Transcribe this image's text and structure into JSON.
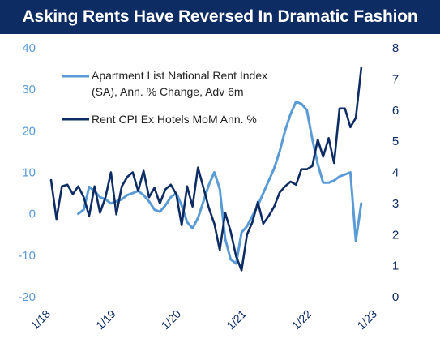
{
  "chart_data": {
    "type": "line",
    "title": "Asking Rents Have  Reversed In Dramatic Fashion",
    "grid": false,
    "legend_position": "top-left",
    "left_axis": {
      "ticks": [
        "40",
        "30",
        "20",
        "10",
        "0",
        "-10",
        "-20"
      ],
      "ylim": [
        -20,
        40
      ]
    },
    "right_axis": {
      "ticks": [
        "8",
        "7",
        "6",
        "5",
        "4",
        "3",
        "2",
        "1",
        "0"
      ],
      "ylim": [
        0,
        8
      ]
    },
    "x_ticks": [
      "1/18",
      "1/19",
      "1/20",
      "1/21",
      "1/22",
      "1/23"
    ],
    "x_range": [
      "2018-01",
      "2023-01"
    ],
    "series": [
      {
        "name": "Apartment List National Rent Index (SA), Ann. % Change, Adv 6m",
        "axis": "left",
        "color": "#5b9bd5",
        "points": [
          [
            "2018-06",
            0
          ],
          [
            "2018-07",
            1
          ],
          [
            "2018-08",
            6.5
          ],
          [
            "2018-09",
            5.5
          ],
          [
            "2018-10",
            4
          ],
          [
            "2018-11",
            3.5
          ],
          [
            "2018-12",
            2.5
          ],
          [
            "2019-01",
            3
          ],
          [
            "2019-02",
            3.5
          ],
          [
            "2019-03",
            4.5
          ],
          [
            "2019-04",
            5
          ],
          [
            "2019-05",
            5.5
          ],
          [
            "2019-06",
            4.5
          ],
          [
            "2019-07",
            3
          ],
          [
            "2019-08",
            1
          ],
          [
            "2019-09",
            0.5
          ],
          [
            "2019-10",
            2
          ],
          [
            "2019-11",
            4
          ],
          [
            "2019-12",
            5
          ],
          [
            "2020-01",
            2
          ],
          [
            "2020-02",
            -2
          ],
          [
            "2020-03",
            -3.5
          ],
          [
            "2020-04",
            -1
          ],
          [
            "2020-05",
            3
          ],
          [
            "2020-06",
            7
          ],
          [
            "2020-07",
            10
          ],
          [
            "2020-08",
            6
          ],
          [
            "2020-09",
            -6
          ],
          [
            "2020-10",
            -11
          ],
          [
            "2020-11",
            -12
          ],
          [
            "2020-12",
            -4.5
          ],
          [
            "2021-01",
            -3
          ],
          [
            "2021-02",
            -0.5
          ],
          [
            "2021-03",
            2
          ],
          [
            "2021-04",
            5
          ],
          [
            "2021-05",
            8
          ],
          [
            "2021-06",
            11
          ],
          [
            "2021-07",
            15
          ],
          [
            "2021-08",
            20
          ],
          [
            "2021-09",
            24
          ],
          [
            "2021-10",
            27
          ],
          [
            "2021-11",
            26.5
          ],
          [
            "2021-12",
            25
          ],
          [
            "2022-01",
            18
          ],
          [
            "2022-02",
            12
          ],
          [
            "2022-03",
            7.5
          ],
          [
            "2022-04",
            7.5
          ],
          [
            "2022-05",
            8
          ],
          [
            "2022-06",
            9
          ],
          [
            "2022-07",
            9.5
          ],
          [
            "2022-08",
            10
          ],
          [
            "2022-09",
            -6.5
          ],
          [
            "2022-10",
            2.5
          ]
        ]
      },
      {
        "name": "Rent CPI Ex Hotels MoM Ann. %",
        "axis": "right",
        "color": "#0d2c63",
        "points": [
          [
            "2018-01",
            3.75
          ],
          [
            "2018-02",
            2.5
          ],
          [
            "2018-03",
            3.55
          ],
          [
            "2018-04",
            3.6
          ],
          [
            "2018-05",
            3.3
          ],
          [
            "2018-06",
            3.55
          ],
          [
            "2018-07",
            3.2
          ],
          [
            "2018-08",
            2.6
          ],
          [
            "2018-09",
            3.55
          ],
          [
            "2018-10",
            2.7
          ],
          [
            "2018-11",
            3.2
          ],
          [
            "2018-12",
            4.0
          ],
          [
            "2019-01",
            2.65
          ],
          [
            "2019-02",
            3.55
          ],
          [
            "2019-03",
            3.85
          ],
          [
            "2019-04",
            4.0
          ],
          [
            "2019-05",
            3.4
          ],
          [
            "2019-06",
            4.05
          ],
          [
            "2019-07",
            3.2
          ],
          [
            "2019-08",
            3.5
          ],
          [
            "2019-09",
            3.0
          ],
          [
            "2019-10",
            3.45
          ],
          [
            "2019-11",
            3.6
          ],
          [
            "2019-12",
            3.3
          ],
          [
            "2020-01",
            2.3
          ],
          [
            "2020-02",
            3.55
          ],
          [
            "2020-03",
            2.9
          ],
          [
            "2020-04",
            4.15
          ],
          [
            "2020-05",
            3.5
          ],
          [
            "2020-06",
            2.85
          ],
          [
            "2020-07",
            2.35
          ],
          [
            "2020-08",
            1.5
          ],
          [
            "2020-09",
            2.7
          ],
          [
            "2020-10",
            2.1
          ],
          [
            "2020-11",
            1.3
          ],
          [
            "2020-12",
            0.85
          ],
          [
            "2021-01",
            2.0
          ],
          [
            "2021-02",
            2.4
          ],
          [
            "2021-03",
            3.05
          ],
          [
            "2021-04",
            2.35
          ],
          [
            "2021-05",
            2.6
          ],
          [
            "2021-06",
            2.9
          ],
          [
            "2021-07",
            3.35
          ],
          [
            "2021-08",
            3.55
          ],
          [
            "2021-09",
            3.7
          ],
          [
            "2021-10",
            3.6
          ],
          [
            "2021-11",
            4.1
          ],
          [
            "2021-12",
            4.1
          ],
          [
            "2022-01",
            4.2
          ],
          [
            "2022-02",
            5.05
          ],
          [
            "2022-03",
            4.5
          ],
          [
            "2022-04",
            5.1
          ],
          [
            "2022-05",
            4.3
          ],
          [
            "2022-06",
            6.05
          ],
          [
            "2022-07",
            6.05
          ],
          [
            "2022-08",
            5.45
          ],
          [
            "2022-09",
            5.75
          ],
          [
            "2022-10",
            7.35
          ]
        ]
      }
    ]
  }
}
